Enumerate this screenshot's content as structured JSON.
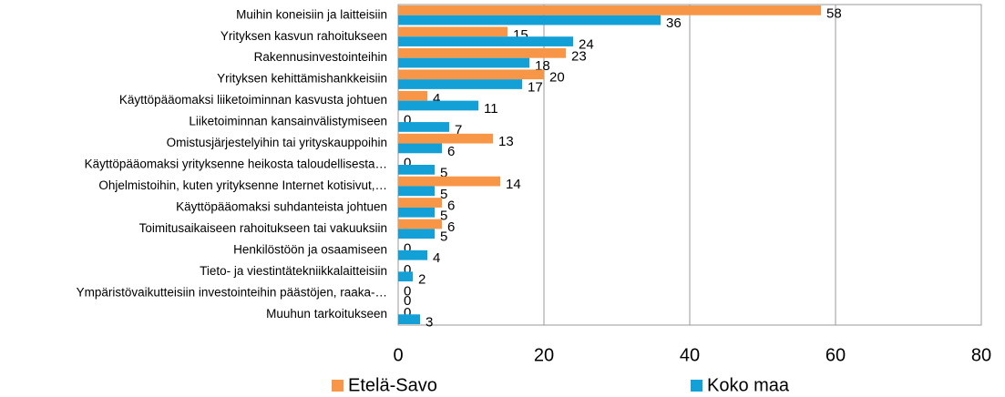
{
  "chart_data": {
    "type": "bar",
    "orientation": "horizontal",
    "categories": [
      "Muihin koneisiin ja laitteisiin",
      "Yrityksen kasvun rahoitukseen",
      "Rakennusinvestointeihin",
      "Yrityksen kehittämishankkeisiin",
      "Käyttöpääomaksi liiketoiminnan kasvusta johtuen",
      "Liiketoiminnan kansainvälistymiseen",
      "Omistusjärjestelyihin tai yrityskauppoihin",
      "Käyttöpääomaksi yrityksenne heikosta taloudellisesta…",
      "Ohjelmistoihin, kuten yrityksenne Internet kotisivut,…",
      "Käyttöpääomaksi suhdanteista johtuen",
      "Toimitusaikaiseen rahoitukseen tai vakuuksiin",
      "Henkilöstöön ja osaamiseen",
      "Tieto- ja viestintätekniikkalaitteisiin",
      "Ympäristövaikutteisiin investointeihin päästöjen, raaka-…",
      "Muuhun tarkoitukseen"
    ],
    "series": [
      {
        "name": "Etelä-Savo",
        "color": "#f79646",
        "values": [
          58,
          15,
          23,
          20,
          4,
          0,
          13,
          0,
          14,
          6,
          6,
          0,
          0,
          0,
          0
        ]
      },
      {
        "name": "Koko maa",
        "color": "#12a0d7",
        "values": [
          36,
          24,
          18,
          17,
          11,
          7,
          6,
          5,
          5,
          5,
          5,
          4,
          2,
          0,
          3
        ]
      }
    ],
    "xlim": [
      0,
      80
    ],
    "xticks": [
      0,
      20,
      40,
      60,
      80
    ],
    "grid": true,
    "legend": "bottom"
  }
}
